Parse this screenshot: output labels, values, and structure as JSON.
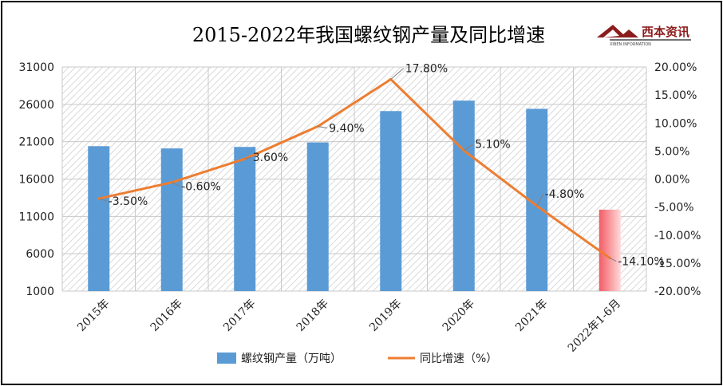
{
  "chart_data": {
    "type": "bar+line",
    "title": "2015-2022年我国螺纹钢产量及同比增速",
    "categories": [
      "2015年",
      "2016年",
      "2017年",
      "2018年",
      "2019年",
      "2020年",
      "2021年",
      "2022年1-6月"
    ],
    "series": [
      {
        "name": "螺纹钢产量（万吨）",
        "type": "bar",
        "axis": "left",
        "values": [
          20400,
          20100,
          20300,
          20900,
          25100,
          26500,
          25400,
          11900
        ],
        "color": "#5b9bd5",
        "highlight_color": "#f4787a"
      },
      {
        "name": "同比增速（%）",
        "type": "line",
        "axis": "right",
        "values": [
          -3.5,
          -0.6,
          3.6,
          9.4,
          17.8,
          5.1,
          -4.8,
          -14.1
        ],
        "labels": [
          "-3.50%",
          "-0.60%",
          "3.60%",
          "9.40%",
          "17.80%",
          "5.10%",
          "-4.80%",
          "-14.10%"
        ],
        "color": "#ed7d31"
      }
    ],
    "y_left": {
      "min": 1000,
      "max": 31000,
      "ticks": [
        "1000",
        "6000",
        "11000",
        "16000",
        "21000",
        "26000",
        "31000"
      ]
    },
    "y_right": {
      "min": -20,
      "max": 20,
      "ticks": [
        "-20.00%",
        "-15.00%",
        "-10.00%",
        "-5.00%",
        "0.00%",
        "5.00%",
        "10.00%",
        "15.00%",
        "20.00%"
      ]
    },
    "legend_position": "bottom",
    "grid": true
  },
  "logo": {
    "text": "西本资讯",
    "subtext": "XIBEN INFORMATION"
  }
}
